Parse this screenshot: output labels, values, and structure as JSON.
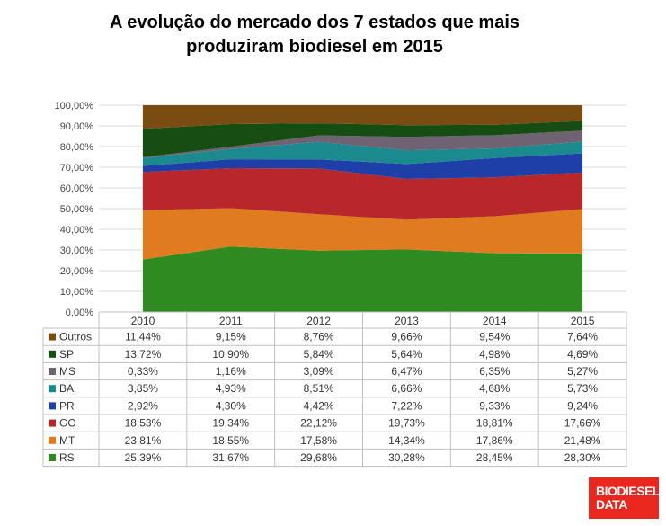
{
  "title_lines": [
    "A evolução do mercado dos 7 estados que mais",
    "produziram biodiesel  em 2015"
  ],
  "logo": {
    "line1": "BIODIESEL",
    "line2": "DATA"
  },
  "chart_data": {
    "type": "area",
    "stacked": true,
    "title": "A evolução do mercado dos 7 estados que mais produziram biodiesel  em 2015",
    "categories": [
      "2010",
      "2011",
      "2012",
      "2013",
      "2014",
      "2015"
    ],
    "y_ticks": [
      "0,00%",
      "10,00%",
      "20,00%",
      "30,00%",
      "40,00%",
      "50,00%",
      "60,00%",
      "70,00%",
      "80,00%",
      "90,00%",
      "100,00%"
    ],
    "ylim": [
      0,
      100
    ],
    "grid": true,
    "legend": "data-table",
    "series": [
      {
        "name": "RS",
        "color": "#2e8b1f",
        "values": [
          25.39,
          31.67,
          29.68,
          30.28,
          28.45,
          28.3
        ],
        "labels": [
          "25,39%",
          "31,67%",
          "29,68%",
          "30,28%",
          "28,45%",
          "28,30%"
        ]
      },
      {
        "name": "MT",
        "color": "#e07b1f",
        "values": [
          23.81,
          18.55,
          17.58,
          14.34,
          17.86,
          21.48
        ],
        "labels": [
          "23,81%",
          "18,55%",
          "17,58%",
          "14,34%",
          "17,86%",
          "21,48%"
        ]
      },
      {
        "name": "GO",
        "color": "#b8282a",
        "values": [
          18.53,
          19.34,
          22.12,
          19.73,
          18.81,
          17.66
        ],
        "labels": [
          "18,53%",
          "19,34%",
          "22,12%",
          "19,73%",
          "18,81%",
          "17,66%"
        ]
      },
      {
        "name": "PR",
        "color": "#1f3fa8",
        "values": [
          2.92,
          4.3,
          4.42,
          7.22,
          9.33,
          9.24
        ],
        "labels": [
          "2,92%",
          "4,30%",
          "4,42%",
          "7,22%",
          "9,33%",
          "9,24%"
        ]
      },
      {
        "name": "BA",
        "color": "#1b8a8f",
        "values": [
          3.85,
          4.93,
          8.51,
          6.66,
          4.68,
          5.73
        ],
        "labels": [
          "3,85%",
          "4,93%",
          "8,51%",
          "6,66%",
          "4,68%",
          "5,73%"
        ]
      },
      {
        "name": "MS",
        "color": "#6e6273",
        "values": [
          0.33,
          1.16,
          3.09,
          6.47,
          6.35,
          5.27
        ],
        "labels": [
          "0,33%",
          "1,16%",
          "3,09%",
          "6,47%",
          "6,35%",
          "5,27%"
        ]
      },
      {
        "name": "SP",
        "color": "#154d12",
        "values": [
          13.72,
          10.9,
          5.84,
          5.64,
          4.98,
          4.69
        ],
        "labels": [
          "13,72%",
          "10,90%",
          "5,84%",
          "5,64%",
          "4,98%",
          "4,69%"
        ]
      },
      {
        "name": "Outros",
        "color": "#7a4c12",
        "values": [
          11.44,
          9.15,
          8.76,
          9.66,
          9.54,
          7.64
        ],
        "labels": [
          "11,44%",
          "9,15%",
          "8,76%",
          "9,66%",
          "9,54%",
          "7,64%"
        ]
      }
    ]
  }
}
